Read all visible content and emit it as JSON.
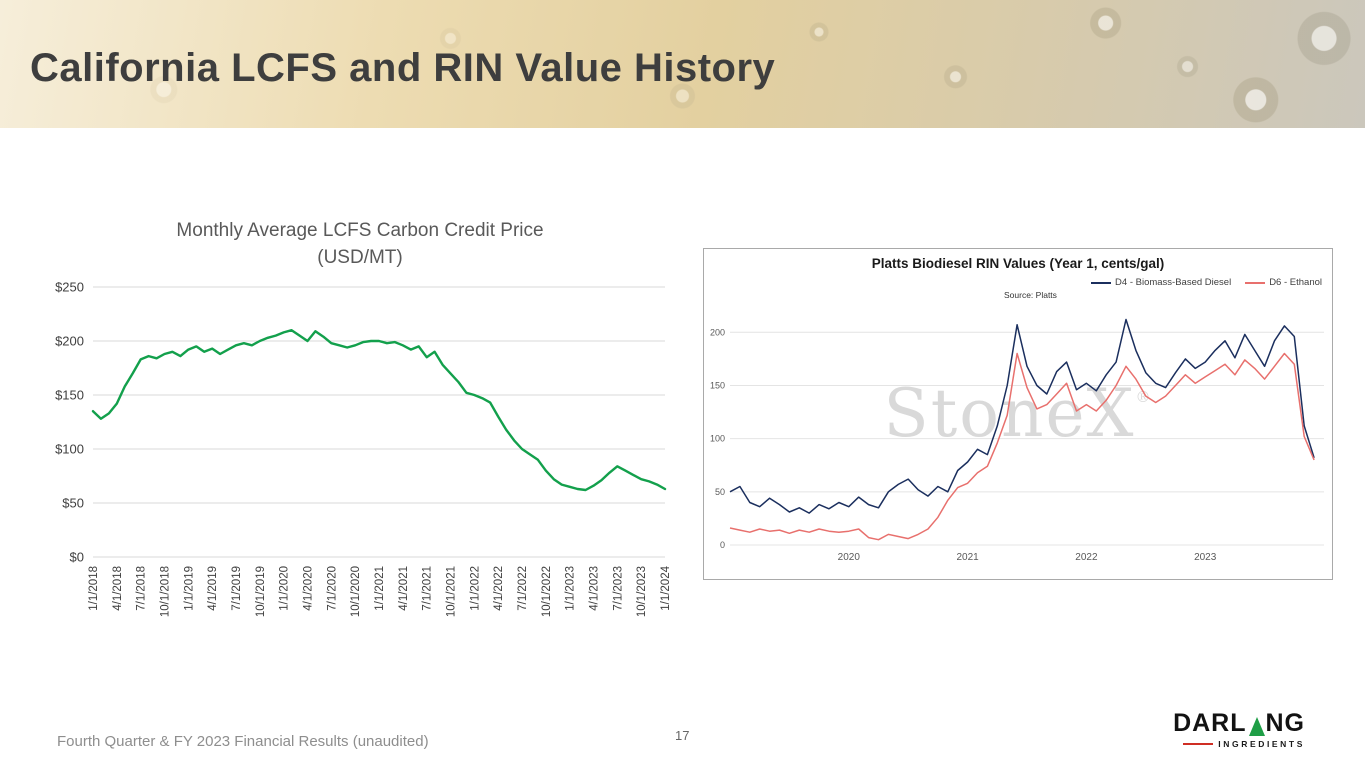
{
  "slide": {
    "title": "California LCFS and RIN Value History",
    "footer_text": "Fourth Quarter & FY 2023 Financial Results (unaudited)",
    "page_number": "17"
  },
  "logo": {
    "brand_left": "DARL",
    "brand_right": "NG",
    "subtitle": "INGREDIENTS",
    "leaf_color": "#1e9e46",
    "accent_color": "#cf2e24"
  },
  "chart_data": [
    {
      "id": "lcfs",
      "type": "line",
      "title": "Monthly Average LCFS Carbon Credit Price",
      "subtitle": "(USD/MT)",
      "line_color": "#13a04c",
      "grid": "horizontal",
      "ylim": [
        0,
        250
      ],
      "ytick_step": 50,
      "ytick_labels": [
        "$0",
        "$50",
        "$100",
        "$150",
        "$200",
        "$250"
      ],
      "xtick_every_n_points": 3,
      "xtick_labels": [
        "1/1/2018",
        "4/1/2018",
        "7/1/2018",
        "10/1/2018",
        "1/1/2019",
        "4/1/2019",
        "7/1/2019",
        "10/1/2019",
        "1/1/2020",
        "4/1/2020",
        "7/1/2020",
        "10/1/2020",
        "1/1/2021",
        "4/1/2021",
        "7/1/2021",
        "10/1/2021",
        "1/1/2022",
        "4/1/2022",
        "7/1/2022",
        "10/1/2022",
        "1/1/2023",
        "4/1/2023",
        "7/1/2023",
        "10/1/2023",
        "1/1/2024"
      ],
      "values": [
        135,
        128,
        133,
        142,
        158,
        170,
        183,
        186,
        184,
        188,
        190,
        186,
        192,
        195,
        190,
        193,
        188,
        192,
        196,
        198,
        196,
        200,
        203,
        205,
        208,
        210,
        205,
        200,
        209,
        204,
        198,
        196,
        194,
        196,
        199,
        200,
        200,
        198,
        199,
        196,
        192,
        195,
        185,
        190,
        178,
        170,
        162,
        152,
        150,
        147,
        143,
        130,
        118,
        108,
        100,
        95,
        90,
        80,
        72,
        67,
        65,
        63,
        62,
        66,
        71,
        78,
        84,
        80,
        76,
        72,
        70,
        67,
        63
      ]
    },
    {
      "id": "rin",
      "type": "line",
      "title": "Platts Biodiesel RIN Values (Year 1, cents/gal)",
      "source_note": "Source: Platts",
      "watermark": "StoneX",
      "watermark_reg": "®",
      "grid": "horizontal",
      "legend_position": "top-right",
      "ylim": [
        0,
        220
      ],
      "ytick_values": [
        0,
        50,
        100,
        150,
        200
      ],
      "ytick_labels": [
        "0",
        "50",
        "100",
        "150",
        "200"
      ],
      "x_range": [
        2019,
        2024
      ],
      "x_step_years": 0.083333,
      "xtick_values": [
        2020,
        2021,
        2022,
        2023
      ],
      "xtick_labels": [
        "2020",
        "2021",
        "2022",
        "2023"
      ],
      "series": [
        {
          "name": "D4 - Biomass-Based Diesel",
          "color": "#1b2f5e",
          "values": [
            50,
            55,
            40,
            36,
            44,
            38,
            31,
            35,
            30,
            38,
            34,
            40,
            36,
            45,
            38,
            35,
            50,
            57,
            62,
            52,
            46,
            55,
            50,
            70,
            78,
            90,
            85,
            112,
            150,
            207,
            168,
            150,
            142,
            163,
            172,
            146,
            152,
            145,
            160,
            172,
            212,
            183,
            162,
            152,
            148,
            162,
            175,
            166,
            172,
            183,
            192,
            176,
            198,
            183,
            168,
            192,
            206,
            196,
            112,
            82
          ]
        },
        {
          "name": "D6 - Ethanol",
          "color": "#e8706d",
          "values": [
            16,
            14,
            12,
            15,
            13,
            14,
            11,
            14,
            12,
            15,
            13,
            12,
            13,
            15,
            7,
            5,
            10,
            8,
            6,
            10,
            15,
            26,
            42,
            54,
            58,
            68,
            74,
            96,
            122,
            180,
            148,
            128,
            132,
            142,
            152,
            126,
            132,
            126,
            136,
            150,
            168,
            156,
            140,
            134,
            140,
            150,
            160,
            152,
            158,
            164,
            170,
            160,
            174,
            166,
            156,
            168,
            180,
            170,
            102,
            80
          ]
        }
      ]
    }
  ]
}
